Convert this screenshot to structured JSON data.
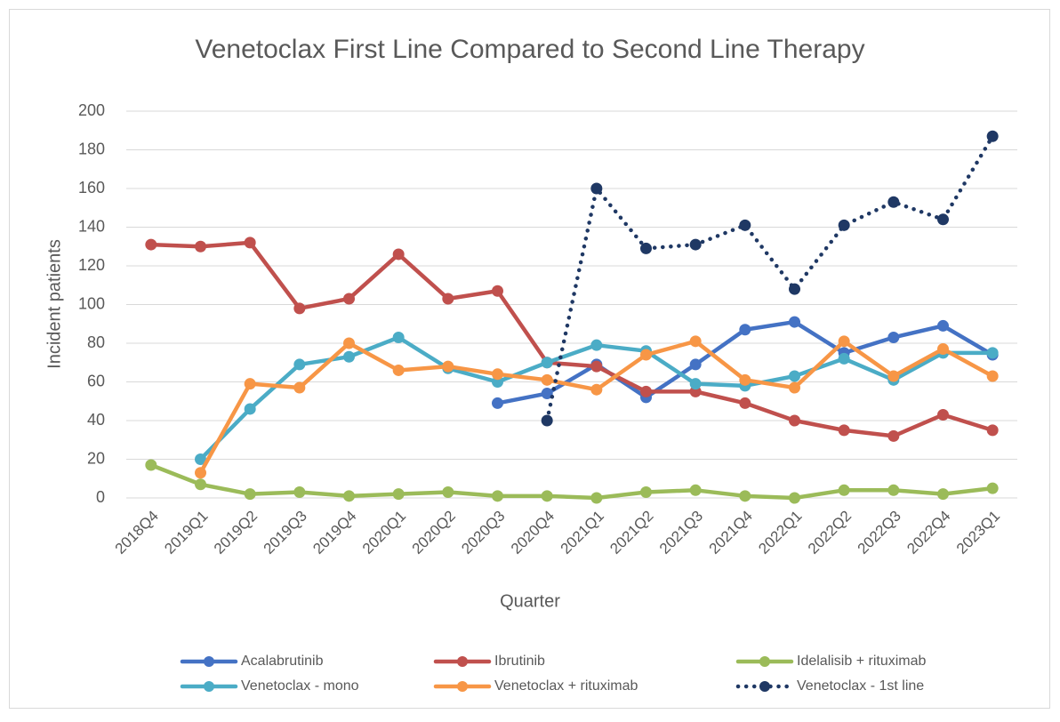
{
  "chart_data": {
    "type": "line",
    "title": "Venetoclax First Line Compared to Second Line Therapy",
    "x_label": "Quarter",
    "y_label": "Incident patients",
    "categories": [
      "2018Q4",
      "2019Q1",
      "2019Q2",
      "2019Q3",
      "2019Q4",
      "2020Q1",
      "2020Q2",
      "2020Q3",
      "2020Q4",
      "2021Q1",
      "2021Q2",
      "2021Q3",
      "2021Q4",
      "2022Q1",
      "2022Q2",
      "2022Q3",
      "2022Q4",
      "2023Q1"
    ],
    "ylim": [
      0,
      200
    ],
    "yticks": [
      0,
      20,
      40,
      60,
      80,
      100,
      120,
      140,
      160,
      180,
      200
    ],
    "grid": true,
    "legend": "bottom",
    "series": [
      {
        "name": "Acalabrutinib",
        "color": "#4472c4",
        "line_style": "solid",
        "values": [
          null,
          null,
          null,
          null,
          null,
          null,
          null,
          49,
          54,
          69,
          52,
          69,
          87,
          91,
          75,
          83,
          89,
          74
        ]
      },
      {
        "name": "Ibrutinib",
        "color": "#c0504d",
        "line_style": "solid",
        "values": [
          131,
          130,
          132,
          98,
          103,
          126,
          103,
          107,
          70,
          68,
          55,
          55,
          49,
          40,
          35,
          32,
          43,
          35
        ]
      },
      {
        "name": "Idelalisib + rituximab",
        "color": "#9bbb59",
        "line_style": "solid",
        "values": [
          17,
          7,
          2,
          3,
          1,
          2,
          3,
          1,
          1,
          0,
          3,
          4,
          1,
          0,
          4,
          4,
          2,
          5
        ]
      },
      {
        "name": "Venetoclax - mono",
        "color": "#4bacc6",
        "line_style": "solid",
        "values": [
          null,
          20,
          46,
          69,
          73,
          83,
          67,
          60,
          70,
          79,
          76,
          59,
          58,
          63,
          72,
          61,
          75,
          75
        ]
      },
      {
        "name": "Venetoclax + rituximab",
        "color": "#f79646",
        "line_style": "solid",
        "values": [
          null,
          13,
          59,
          57,
          80,
          66,
          68,
          64,
          61,
          56,
          74,
          81,
          61,
          57,
          81,
          63,
          77,
          63
        ]
      },
      {
        "name": "Venetoclax - 1st line",
        "color": "#1f3864",
        "line_style": "dotted",
        "values": [
          null,
          null,
          null,
          null,
          null,
          null,
          null,
          null,
          40,
          160,
          129,
          131,
          141,
          108,
          141,
          153,
          144,
          187
        ]
      }
    ]
  }
}
